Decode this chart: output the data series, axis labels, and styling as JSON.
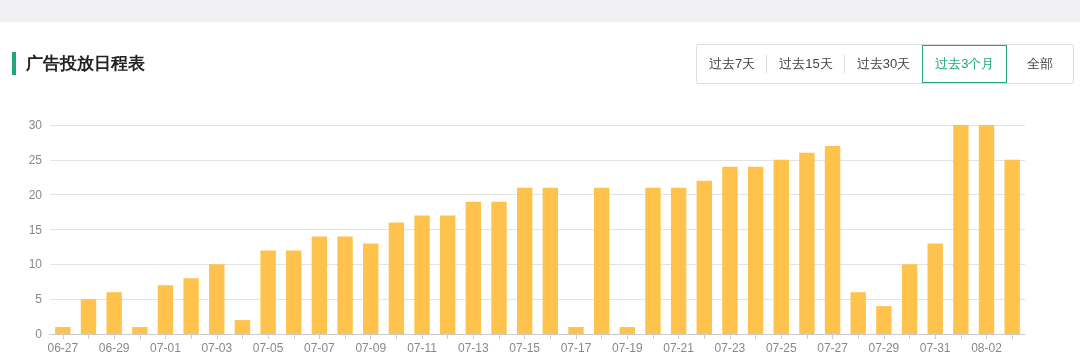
{
  "chart_data": {
    "type": "bar",
    "title": "广告投放日程表",
    "annotations": [
      "过去7天",
      "过去15天",
      "过去30天",
      "过去3个月",
      "全部"
    ],
    "categories": [
      "06-27",
      null,
      "06-29",
      null,
      "07-01",
      null,
      "07-03",
      null,
      "07-05",
      null,
      "07-07",
      null,
      "07-09",
      null,
      "07-11",
      null,
      "07-13",
      null,
      "07-15",
      null,
      "07-17",
      null,
      "07-19",
      null,
      "07-21",
      null,
      "07-23",
      null,
      "07-25",
      null,
      "07-27",
      null,
      "07-29",
      null,
      "07-31",
      null,
      "08-02",
      null
    ],
    "values": [
      1,
      5,
      6,
      1,
      7,
      8,
      10,
      2,
      12,
      12,
      14,
      14,
      13,
      16,
      17,
      17,
      19,
      19,
      21,
      21,
      1,
      21,
      1,
      21,
      21,
      22,
      24,
      24,
      25,
      26,
      27,
      6,
      4,
      10,
      13,
      30,
      30,
      25
    ],
    "color": "#ffc34d",
    "ylim": [
      0,
      30
    ],
    "yticks": [
      0,
      5,
      10,
      15,
      20,
      25,
      30
    ],
    "grid": "y"
  }
}
